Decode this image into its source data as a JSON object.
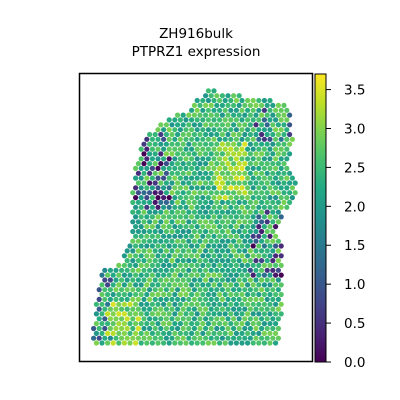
{
  "chart_data": {
    "type": "scatter",
    "subtype": "spatial-hexbin",
    "title_lines": [
      "ZH916bulk",
      "PTPRZ1 expression"
    ],
    "colormap": "viridis",
    "colorbar": {
      "vmin": 0.0,
      "vmax": 3.7,
      "ticks": [
        0.0,
        0.5,
        1.0,
        1.5,
        2.0,
        2.5,
        3.0,
        3.5
      ],
      "tick_labels": [
        "0.0",
        "0.5",
        "1.0",
        "1.5",
        "2.0",
        "2.5",
        "3.0",
        "3.5"
      ]
    },
    "axes_visible": false,
    "grid": false,
    "value_distribution": {
      "typical_range": [
        1.5,
        3.2
      ],
      "median": 2.5,
      "low_expression_regions": [
        "upper-left edge",
        "lower-right band",
        "left edge of lower lobe"
      ]
    },
    "colors": {
      "viridis_0": "#440154",
      "viridis_25": "#3b528b",
      "viridis_50": "#21918c",
      "viridis_75": "#5ec962",
      "viridis_100": "#fde725"
    }
  }
}
